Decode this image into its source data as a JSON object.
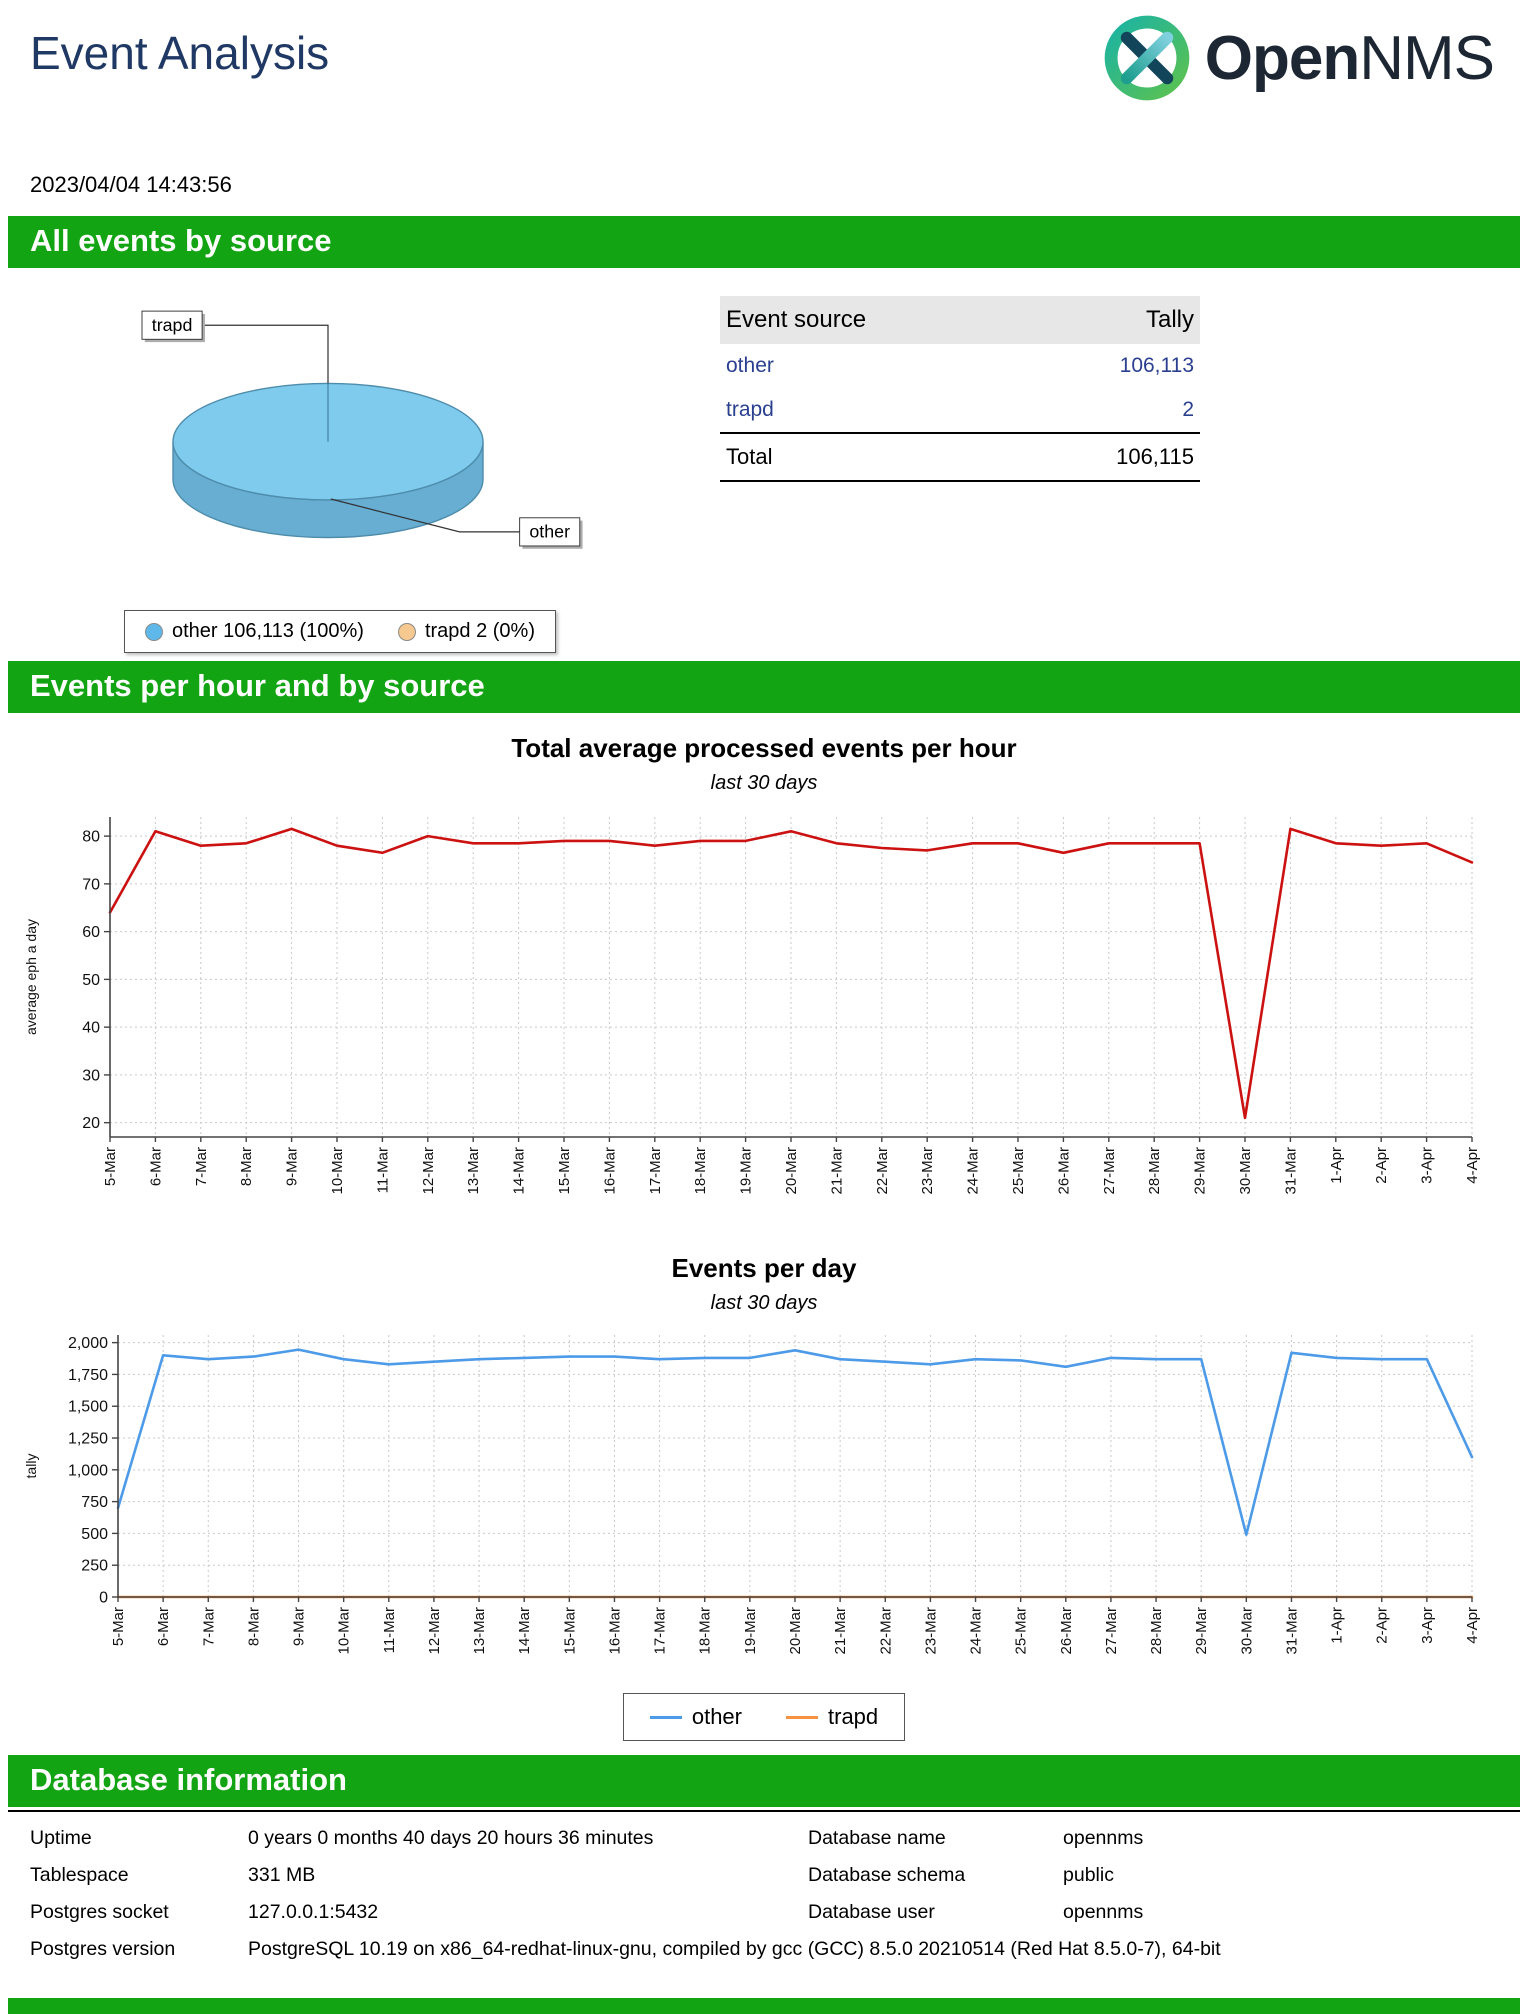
{
  "page": {
    "title": "Event Analysis",
    "timestamp": "2023/04/04 14:43:56",
    "logo": {
      "word_bold": "Open",
      "word_light": "NMS"
    }
  },
  "sections": {
    "all_events": "All events by source",
    "events_per_hour": "Events per hour and by source",
    "database": "Database information"
  },
  "pie": {
    "slice_color": "#7FCBEE",
    "side_color": "#67AED2",
    "labels": {
      "trapd": "trapd",
      "other": "other"
    },
    "legend": [
      {
        "label": "other 106,113 (100%)",
        "color": "#5FB8EA"
      },
      {
        "label": "trapd 2 (0%)",
        "color": "#F6C990"
      }
    ]
  },
  "source_table": {
    "col_source": "Event source",
    "col_tally": "Tally",
    "rows": [
      {
        "source": "other",
        "tally": "106,113"
      },
      {
        "source": "trapd",
        "tally": "2"
      }
    ],
    "total_label": "Total",
    "total_value": "106,115"
  },
  "chart_data": [
    {
      "type": "pie",
      "labels": [
        "other",
        "trapd"
      ],
      "values": [
        106113,
        2
      ],
      "percentages": [
        "100%",
        "0%"
      ],
      "colors": [
        "#5FB8EA",
        "#F6C990"
      ],
      "legend_position": "bottom"
    },
    {
      "type": "line",
      "title": "Total average processed events per hour",
      "subtitle": "last 30 days",
      "xlabel": "",
      "ylabel": "average eph a day",
      "ylim": [
        17,
        84
      ],
      "yticks": [
        20,
        30,
        40,
        50,
        60,
        70,
        80
      ],
      "grid": true,
      "categories": [
        "5-Mar",
        "6-Mar",
        "7-Mar",
        "8-Mar",
        "9-Mar",
        "10-Mar",
        "11-Mar",
        "12-Mar",
        "13-Mar",
        "14-Mar",
        "15-Mar",
        "16-Mar",
        "17-Mar",
        "18-Mar",
        "19-Mar",
        "20-Mar",
        "21-Mar",
        "22-Mar",
        "23-Mar",
        "24-Mar",
        "25-Mar",
        "26-Mar",
        "27-Mar",
        "28-Mar",
        "29-Mar",
        "30-Mar",
        "31-Mar",
        "1-Apr",
        "2-Apr",
        "3-Apr",
        "4-Apr"
      ],
      "series": [
        {
          "name": "average eph",
          "color": "#CC1111",
          "values": [
            64,
            81,
            78,
            78.5,
            81.5,
            78,
            76.5,
            80,
            78.5,
            78.5,
            79,
            79,
            78,
            79,
            79,
            81,
            78.5,
            77.5,
            77,
            78.5,
            78.5,
            76.5,
            78.5,
            78.5,
            78.5,
            21,
            81.5,
            78.5,
            78,
            78.5,
            74.5
          ]
        }
      ]
    },
    {
      "type": "line",
      "title": "Events per day",
      "subtitle": "last 30 days",
      "xlabel": "",
      "ylabel": "tally",
      "ylim": [
        0,
        2060
      ],
      "yticks": [
        0,
        250,
        500,
        750,
        1000,
        1250,
        1500,
        1750,
        2000
      ],
      "grid": true,
      "legend_position": "bottom",
      "categories": [
        "5-Mar",
        "6-Mar",
        "7-Mar",
        "8-Mar",
        "9-Mar",
        "10-Mar",
        "11-Mar",
        "12-Mar",
        "13-Mar",
        "14-Mar",
        "15-Mar",
        "16-Mar",
        "17-Mar",
        "18-Mar",
        "19-Mar",
        "20-Mar",
        "21-Mar",
        "22-Mar",
        "23-Mar",
        "24-Mar",
        "25-Mar",
        "26-Mar",
        "27-Mar",
        "28-Mar",
        "29-Mar",
        "30-Mar",
        "31-Mar",
        "1-Apr",
        "2-Apr",
        "3-Apr",
        "4-Apr"
      ],
      "series": [
        {
          "name": "other",
          "color": "#4D9BE8",
          "values": [
            700,
            1900,
            1870,
            1890,
            1945,
            1870,
            1830,
            1850,
            1870,
            1880,
            1890,
            1890,
            1870,
            1880,
            1880,
            1940,
            1870,
            1850,
            1830,
            1870,
            1860,
            1810,
            1880,
            1870,
            1870,
            490,
            1920,
            1880,
            1870,
            1870,
            1100
          ]
        },
        {
          "name": "trapd",
          "color": "#F59342",
          "values": [
            0,
            0,
            0,
            0,
            0,
            0,
            0,
            0,
            0,
            0,
            0,
            0,
            0,
            0,
            0,
            0,
            0,
            0,
            0,
            0,
            0,
            0,
            0,
            0,
            0,
            0,
            0,
            0,
            0,
            0,
            0
          ]
        }
      ]
    }
  ],
  "database": {
    "rows": [
      {
        "l1": "Uptime",
        "v1": "0 years 0 months 40 days 20 hours 36 minutes",
        "l2": "Database name",
        "v2": "opennms"
      },
      {
        "l1": "Tablespace",
        "v1": "331 MB",
        "l2": "Database schema",
        "v2": "public"
      },
      {
        "l1": "Postgres socket",
        "v1": "127.0.0.1:5432",
        "l2": "Database user",
        "v2": "opennms"
      },
      {
        "l1": "Postgres version",
        "v1": "PostgreSQL 10.19 on x86_64-redhat-linux-gnu, compiled by gcc (GCC) 8.5.0 20210514 (Red Hat 8.5.0-7), 64-bit"
      }
    ]
  }
}
